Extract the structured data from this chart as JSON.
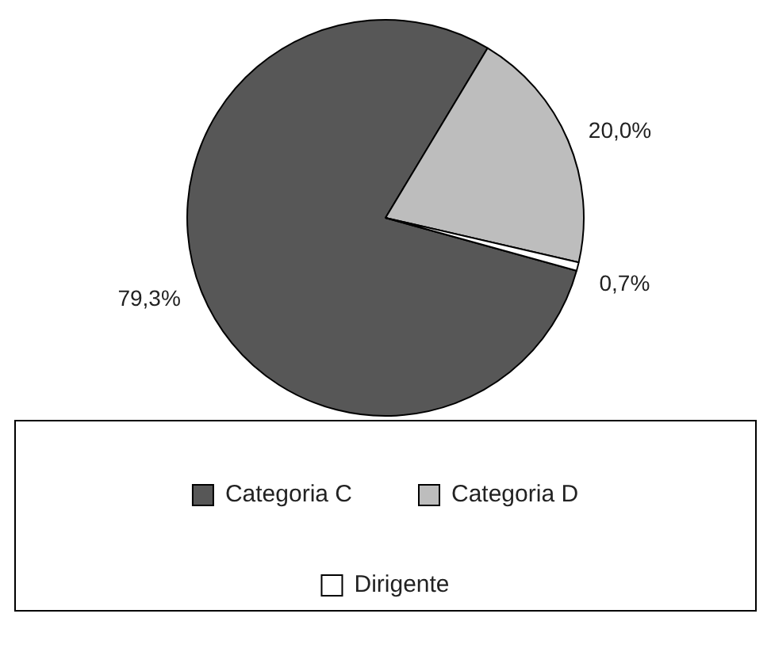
{
  "chart_data": {
    "type": "pie",
    "categories": [
      "Categoria C",
      "Categoria D",
      "Dirigente"
    ],
    "values": [
      79.3,
      20.0,
      0.7
    ],
    "colors": [
      "#575757",
      "#bdbdbd",
      "#ffffff"
    ],
    "value_labels": [
      "79,3%",
      "20,0%",
      "0,7%"
    ],
    "legend": "bottom"
  }
}
